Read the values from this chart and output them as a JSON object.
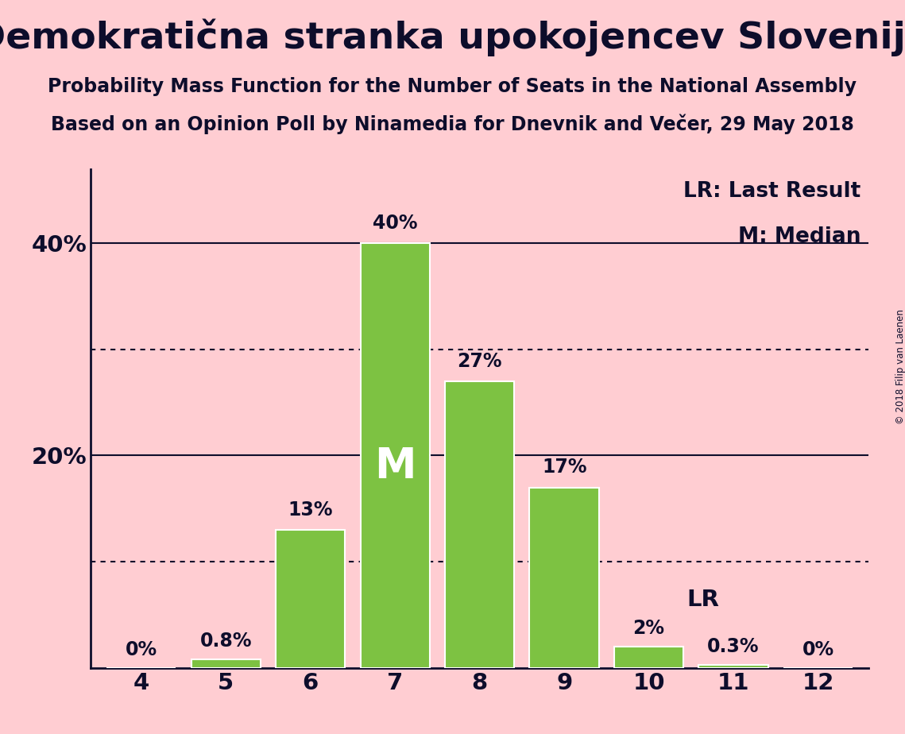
{
  "title": "Demokratična stranka upokojencev Slovenije",
  "subtitle1": "Probability Mass Function for the Number of Seats in the National Assembly",
  "subtitle2": "Based on an Opinion Poll by Ninamedia for Dnevnik and Večer, 29 May 2018",
  "copyright": "© 2018 Filip van Laenen",
  "seats": [
    4,
    5,
    6,
    7,
    8,
    9,
    10,
    11,
    12
  ],
  "probabilities": [
    0.0,
    0.8,
    13.0,
    40.0,
    27.0,
    17.0,
    2.0,
    0.3,
    0.0
  ],
  "bar_color": "#7DC242",
  "bar_edge_color": "#FFFFFF",
  "background_color": "#FFCDD2",
  "text_color": "#0D0D2B",
  "median_seat": 7,
  "lr_seat": 10,
  "yticks": [
    20,
    40
  ],
  "dotted_lines": [
    10,
    30
  ],
  "bar_labels": [
    "0%",
    "0.8%",
    "13%",
    "40%",
    "27%",
    "17%",
    "2%",
    "0.3%",
    "0%"
  ],
  "title_fontsize": 34,
  "subtitle_fontsize": 17,
  "label_fontsize": 17,
  "tick_fontsize": 21,
  "median_label_fontsize": 38,
  "lr_label_fontsize": 21,
  "legend_fontsize": 19
}
